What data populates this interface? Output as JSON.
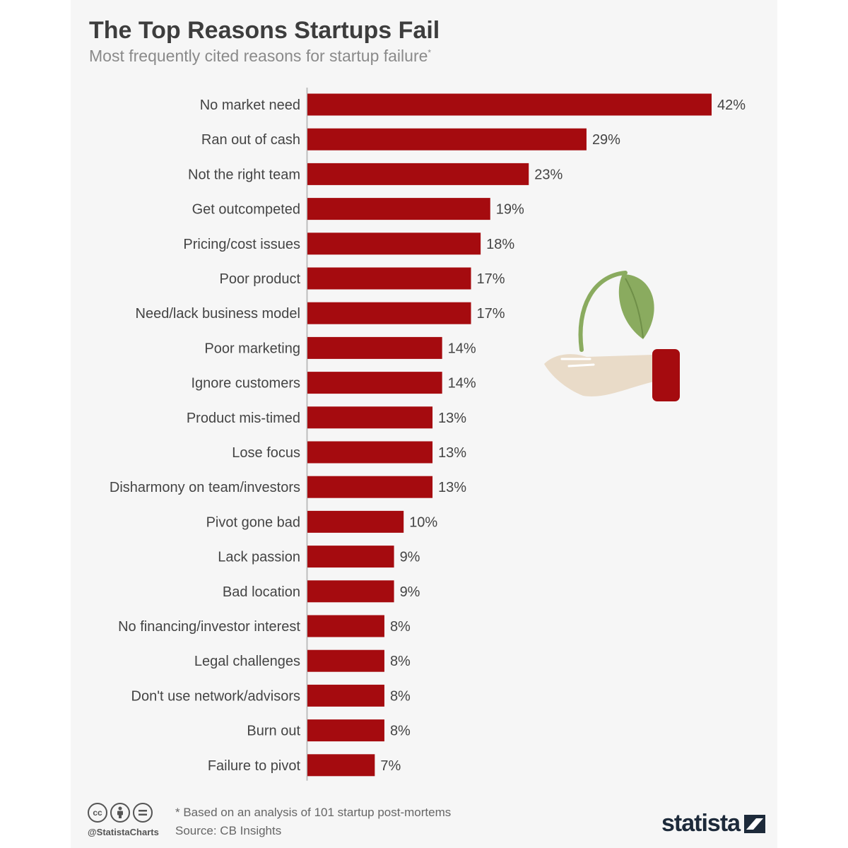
{
  "header": {
    "title": "The Top Reasons Startups Fail",
    "subtitle": "Most frequently cited reasons for startup failure",
    "subtitle_mark": "*"
  },
  "chart_data": {
    "type": "bar",
    "orientation": "horizontal",
    "title": "The Top Reasons Startups Fail",
    "subtitle": "Most frequently cited reasons for startup failure*",
    "categories": [
      "No market need",
      "Ran out of cash",
      "Not the right team",
      "Get outcompeted",
      "Pricing/cost issues",
      "Poor product",
      "Need/lack business model",
      "Poor marketing",
      "Ignore customers",
      "Product mis-timed",
      "Lose focus",
      "Disharmony on team/investors",
      "Pivot gone bad",
      "Lack passion",
      "Bad location",
      "No financing/investor interest",
      "Legal challenges",
      "Don't use network/advisors",
      "Burn out",
      "Failure to pivot"
    ],
    "values": [
      42,
      29,
      23,
      19,
      18,
      17,
      17,
      14,
      14,
      13,
      13,
      13,
      10,
      9,
      9,
      8,
      8,
      8,
      8,
      7
    ],
    "value_labels": [
      "42%",
      "29%",
      "23%",
      "19%",
      "18%",
      "17%",
      "17%",
      "14%",
      "14%",
      "13%",
      "13%",
      "13%",
      "10%",
      "9%",
      "9%",
      "8%",
      "8%",
      "8%",
      "8%",
      "7%"
    ],
    "unit": "%",
    "xlim": [
      0,
      42
    ],
    "bar_color": "#a50b0f",
    "grid": false
  },
  "footer": {
    "note": "* Based on an analysis of 101 startup post-mortems",
    "source": "Source: CB Insights",
    "handle": "@StatistaCharts",
    "brand": "statista",
    "cc_icons": [
      "cc",
      "by",
      "nd"
    ]
  },
  "icons": {
    "illustration": "hand-holding-sprout-icon",
    "license_icons": [
      "creative-commons-icon",
      "attribution-icon",
      "no-derivatives-icon"
    ],
    "brand_logo": "statista-logo-icon"
  }
}
